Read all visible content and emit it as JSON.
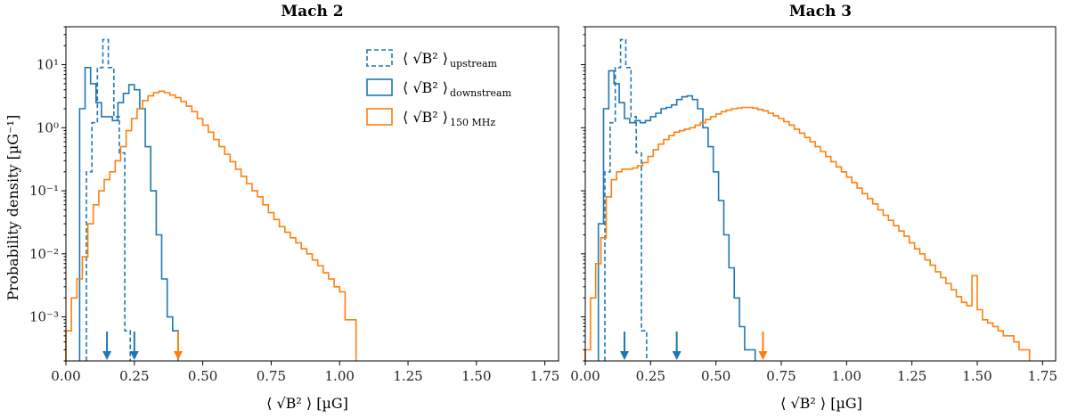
{
  "chart_data": {
    "type": "histogram",
    "ylabel": "Probability density [µG⁻¹]",
    "xlabel": "⟨ √B² ⟩ [µG]",
    "xlim": [
      0,
      1.8
    ],
    "ylim": [
      0.0002,
      40
    ],
    "yscale": "log",
    "xticks": [
      "0.00",
      "0.25",
      "0.50",
      "0.75",
      "1.00",
      "1.25",
      "1.50",
      "1.75"
    ],
    "yticks": [
      {
        "v": 0.001,
        "label": "10⁻³"
      },
      {
        "v": 0.01,
        "label": "10⁻²"
      },
      {
        "v": 0.1,
        "label": "10⁻¹"
      },
      {
        "v": 1,
        "label": "10⁰"
      },
      {
        "v": 10,
        "label": "10¹"
      }
    ],
    "colors": {
      "blue": "#1f77b4",
      "orange": "#ff7f0e"
    },
    "legend": [
      {
        "sym": "⟨ √B² ⟩",
        "sub": "upstream",
        "style": "dashed",
        "color": "#1f77b4"
      },
      {
        "sym": "⟨ √B² ⟩",
        "sub": "downstream",
        "style": "solid",
        "color": "#1f77b4"
      },
      {
        "sym": "⟨ √B² ⟩",
        "sub": "150 MHz",
        "style": "solid",
        "color": "#ff7f0e"
      }
    ],
    "panels": [
      {
        "title": "Mach 2",
        "series": [
          {
            "name": "upstream",
            "style": "dashed",
            "color": "#1f77b4",
            "edges": [
              0.075,
              0.095,
              0.115,
              0.135,
              0.155,
              0.175,
              0.195,
              0.215,
              0.235
            ],
            "values": [
              0.2,
              1.2,
              9,
              25,
              9,
              1.5,
              0.4,
              0.0006
            ]
          },
          {
            "name": "downstream",
            "style": "solid",
            "color": "#1f77b4",
            "edges": [
              0.05,
              0.07,
              0.09,
              0.11,
              0.13,
              0.15,
              0.17,
              0.19,
              0.21,
              0.23,
              0.25,
              0.27,
              0.29,
              0.31,
              0.33,
              0.35,
              0.37,
              0.39,
              0.41
            ],
            "values": [
              2,
              9,
              5,
              2.5,
              1.5,
              1.5,
              1.3,
              2.5,
              3.5,
              4.8,
              4.0,
              2.0,
              0.5,
              0.1,
              0.02,
              0.004,
              0.001,
              0.0006
            ]
          },
          {
            "name": "150 MHz",
            "style": "solid",
            "color": "#ff7f0e",
            "edges": [
              0.0,
              0.02,
              0.04,
              0.06,
              0.08,
              0.1,
              0.12,
              0.14,
              0.16,
              0.18,
              0.2,
              0.22,
              0.24,
              0.26,
              0.28,
              0.3,
              0.32,
              0.34,
              0.36,
              0.38,
              0.4,
              0.42,
              0.44,
              0.46,
              0.48,
              0.5,
              0.52,
              0.54,
              0.56,
              0.58,
              0.6,
              0.62,
              0.64,
              0.66,
              0.68,
              0.7,
              0.72,
              0.74,
              0.76,
              0.78,
              0.8,
              0.82,
              0.84,
              0.86,
              0.88,
              0.9,
              0.92,
              0.94,
              0.96,
              0.98,
              1.0,
              1.02,
              1.04,
              1.06
            ],
            "values": [
              0.0006,
              0.002,
              0.004,
              0.009,
              0.03,
              0.06,
              0.1,
              0.15,
              0.2,
              0.3,
              0.5,
              0.9,
              1.4,
              2.0,
              2.7,
              3.2,
              3.6,
              3.8,
              3.6,
              3.3,
              3.0,
              2.6,
              2.2,
              1.8,
              1.4,
              1.1,
              0.85,
              0.65,
              0.5,
              0.38,
              0.29,
              0.22,
              0.17,
              0.13,
              0.1,
              0.08,
              0.06,
              0.045,
              0.035,
              0.027,
              0.022,
              0.018,
              0.015,
              0.012,
              0.01,
              0.008,
              0.0065,
              0.005,
              0.004,
              0.003,
              0.0025,
              0.0009,
              0.0009
            ]
          }
        ],
        "arrows": [
          {
            "x": 0.15,
            "color": "#1f77b4"
          },
          {
            "x": 0.25,
            "color": "#1f77b4"
          },
          {
            "x": 0.41,
            "color": "#ff7f0e"
          }
        ]
      },
      {
        "title": "Mach 3",
        "series": [
          {
            "name": "upstream",
            "style": "dashed",
            "color": "#1f77b4",
            "edges": [
              0.075,
              0.095,
              0.115,
              0.135,
              0.155,
              0.175,
              0.195,
              0.215,
              0.235
            ],
            "values": [
              0.2,
              1.2,
              9,
              25,
              9,
              1.5,
              0.4,
              0.0006
            ]
          },
          {
            "name": "downstream",
            "style": "solid",
            "color": "#1f77b4",
            "edges": [
              0.05,
              0.07,
              0.09,
              0.11,
              0.13,
              0.15,
              0.17,
              0.19,
              0.21,
              0.23,
              0.25,
              0.27,
              0.29,
              0.31,
              0.33,
              0.35,
              0.37,
              0.39,
              0.41,
              0.43,
              0.45,
              0.47,
              0.49,
              0.51,
              0.53,
              0.55,
              0.57,
              0.59,
              0.61,
              0.63,
              0.65
            ],
            "values": [
              0.03,
              2,
              8,
              5,
              2.5,
              1.4,
              1.2,
              1.3,
              1.2,
              1.3,
              1.5,
              1.7,
              2.0,
              2.1,
              2.3,
              2.8,
              3.1,
              3.2,
              2.8,
              2.0,
              1.0,
              0.5,
              0.2,
              0.07,
              0.02,
              0.006,
              0.002,
              0.0007,
              0.0003,
              0.0003
            ]
          },
          {
            "name": "150 MHz",
            "style": "solid",
            "color": "#ff7f0e",
            "edges": [
              0.0,
              0.02,
              0.04,
              0.06,
              0.08,
              0.1,
              0.12,
              0.14,
              0.16,
              0.18,
              0.2,
              0.22,
              0.24,
              0.26,
              0.28,
              0.3,
              0.32,
              0.34,
              0.36,
              0.38,
              0.4,
              0.42,
              0.44,
              0.46,
              0.48,
              0.5,
              0.52,
              0.54,
              0.56,
              0.58,
              0.6,
              0.62,
              0.64,
              0.66,
              0.68,
              0.7,
              0.72,
              0.74,
              0.76,
              0.78,
              0.8,
              0.82,
              0.84,
              0.86,
              0.88,
              0.9,
              0.92,
              0.94,
              0.96,
              0.98,
              1.0,
              1.02,
              1.04,
              1.06,
              1.08,
              1.1,
              1.12,
              1.14,
              1.16,
              1.18,
              1.2,
              1.22,
              1.24,
              1.26,
              1.28,
              1.3,
              1.32,
              1.34,
              1.36,
              1.38,
              1.4,
              1.42,
              1.44,
              1.46,
              1.48,
              1.5,
              1.52,
              1.54,
              1.56,
              1.58,
              1.6,
              1.62,
              1.64,
              1.66,
              1.68,
              1.7
            ],
            "values": [
              0.0003,
              0.002,
              0.007,
              0.018,
              0.08,
              0.15,
              0.2,
              0.22,
              0.22,
              0.23,
              0.25,
              0.28,
              0.35,
              0.45,
              0.55,
              0.65,
              0.75,
              0.85,
              0.9,
              0.95,
              1.0,
              1.1,
              1.2,
              1.35,
              1.5,
              1.65,
              1.8,
              1.9,
              2.0,
              2.05,
              2.1,
              2.1,
              2.05,
              1.95,
              1.85,
              1.7,
              1.55,
              1.4,
              1.25,
              1.1,
              0.95,
              0.82,
              0.7,
              0.6,
              0.5,
              0.42,
              0.35,
              0.29,
              0.24,
              0.2,
              0.165,
              0.135,
              0.11,
              0.09,
              0.075,
              0.062,
              0.05,
              0.041,
              0.034,
              0.028,
              0.023,
              0.019,
              0.015,
              0.012,
              0.01,
              0.008,
              0.0066,
              0.0052,
              0.0042,
              0.0034,
              0.0027,
              0.0021,
              0.0017,
              0.0015,
              0.0045,
              0.0013,
              0.0009,
              0.0008,
              0.0007,
              0.0006,
              0.0005,
              0.0005,
              0.0004,
              0.0003,
              0.0003
            ]
          }
        ],
        "arrows": [
          {
            "x": 0.15,
            "color": "#1f77b4"
          },
          {
            "x": 0.35,
            "color": "#1f77b4"
          },
          {
            "x": 0.68,
            "color": "#ff7f0e"
          }
        ]
      }
    ]
  }
}
